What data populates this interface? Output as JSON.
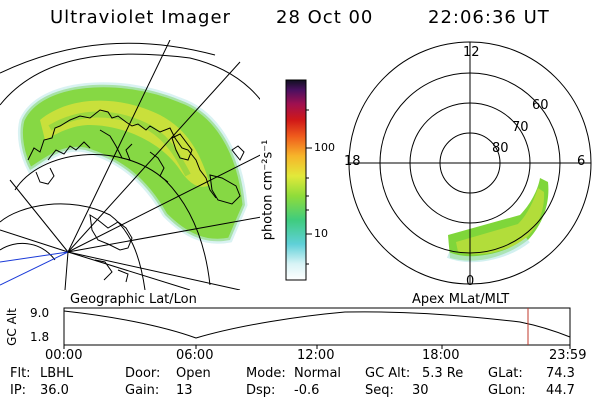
{
  "header": {
    "instrument": "Ultraviolet Imager",
    "date": "28 Oct 00",
    "time": "22:06:36 UT"
  },
  "colorbar": {
    "label": "photon cm⁻²s⁻¹",
    "ticks": [
      "100",
      "10"
    ]
  },
  "polar_plot": {
    "mlt_labels": [
      "12",
      "18",
      "6",
      "0"
    ],
    "mlat_labels": [
      "60",
      "70",
      "80"
    ]
  },
  "projection_labels": {
    "left": "Geographic Lat/Lon",
    "right": "Apex MLat/MLT"
  },
  "altitude_plot": {
    "ylabel": "GC Alt",
    "ymax": "9.0",
    "ymin": "1.8",
    "xticks": [
      "00:00",
      "06:00",
      "12:00",
      "18:00",
      "23:59"
    ]
  },
  "params": {
    "row1": [
      {
        "key": "Flt:",
        "value": "LBHL"
      },
      {
        "key": "Door:",
        "value": "Open"
      },
      {
        "key": "Mode:",
        "value": "Normal"
      },
      {
        "key": "GC Alt:",
        "value": "5.3 Re"
      },
      {
        "key": "GLat:",
        "value": "74.3"
      }
    ],
    "row2": [
      {
        "key": "IP:",
        "value": "36.0"
      },
      {
        "key": "Gain:",
        "value": "13"
      },
      {
        "key": "Dsp:",
        "value": "-0.6"
      },
      {
        "key": "Seq:",
        "value": "30"
      },
      {
        "key": "GLon:",
        "value": "44.7"
      }
    ]
  },
  "colors": {
    "current_time_marker": "#c0392b",
    "aurora_green": "#7fd63a",
    "aurora_yellow": "#d9e23a"
  }
}
